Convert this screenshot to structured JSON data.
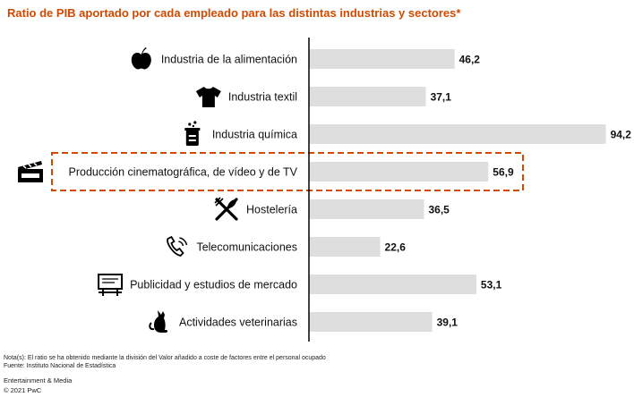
{
  "title": "Ratio de PIB aportado por cada empleado para las distintas industrias y sectores*",
  "chart_data": {
    "type": "bar",
    "orientation": "horizontal",
    "categories": [
      "Industria de la alimentación",
      "Industria textil",
      "Industria química",
      "Producción cinematográfica, de vídeo y de TV",
      "Hostelería",
      "Telecomunicaciones",
      "Publicidad y estudios de mercado",
      "Actividades veterinarias"
    ],
    "values": [
      46.2,
      37.1,
      94.2,
      56.9,
      36.5,
      22.6,
      53.1,
      39.1
    ],
    "value_labels": [
      "46,2",
      "37,1",
      "94,2",
      "56,9",
      "36,5",
      "22,6",
      "53,1",
      "39,1"
    ],
    "icons": [
      "apple-icon",
      "tshirt-icon",
      "chemistry-icon",
      "clapperboard-icon",
      "cutlery-icon",
      "phone-icon",
      "billboard-icon",
      "cat-icon"
    ],
    "highlighted_category": "Producción cinematográfica, de vídeo y de TV",
    "bar_color": "#dedede",
    "highlight_color": "#d04a02",
    "axis_color": "#000000",
    "xlim": [
      0,
      100
    ],
    "grid": false,
    "legend": "none"
  },
  "footer": {
    "note": "Nota(s): El ratio se ha obtenido mediante la división del Valor añadido a coste de factores entre el personal ocupado",
    "source": "Fuente: Instituto Nacional de Estadística",
    "brand": "Entertainment & Media",
    "copyright": "© 2021 PwC"
  }
}
